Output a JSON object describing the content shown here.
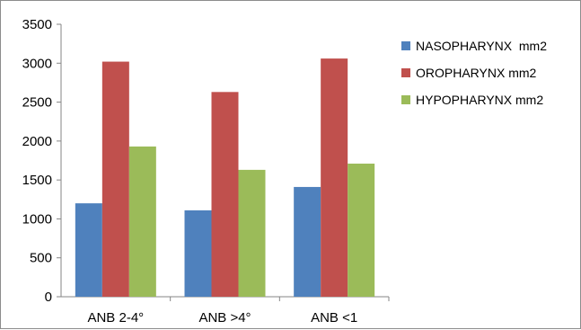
{
  "chart_data": {
    "type": "bar",
    "categories": [
      "ANB 2-4°",
      "ANB >4°",
      "ANB <1"
    ],
    "series": [
      {
        "name": "NASOPHARYNX  mm2",
        "color": "#4f81bd",
        "values": [
          1200,
          1110,
          1410
        ]
      },
      {
        "name": "OROPHARYNX mm2",
        "color": "#c0504d",
        "values": [
          3020,
          2630,
          3060
        ]
      },
      {
        "name": "HYPOPHARYNX mm2",
        "color": "#9bbb59",
        "values": [
          1930,
          1630,
          1710
        ]
      }
    ],
    "yticks": [
      "0",
      "500",
      "1000",
      "1500",
      "2000",
      "2500",
      "3000",
      "3500"
    ],
    "ylim": [
      0,
      3500
    ],
    "grid": false,
    "legend_position": "right"
  }
}
